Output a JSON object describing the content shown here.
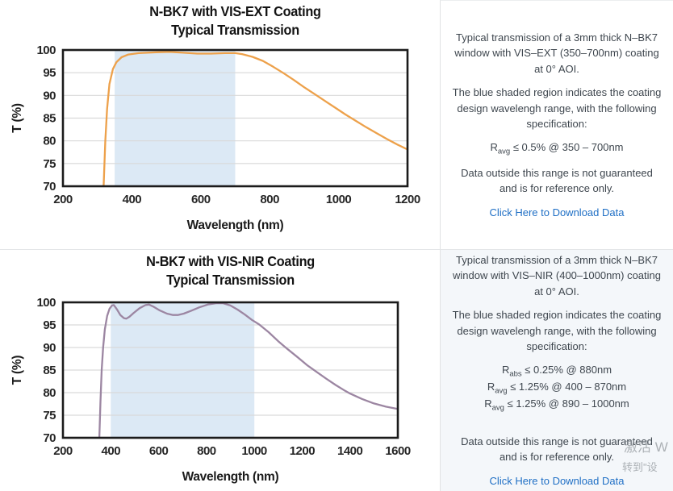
{
  "chart_data": [
    {
      "type": "line",
      "title": "N-BK7 with VIS-EXT Coating",
      "subtitle": "Typical Transmission",
      "xlabel": "Wavelength (nm)",
      "ylabel": "T (%)",
      "xlim": [
        200,
        1200
      ],
      "xticks": [
        200,
        400,
        600,
        800,
        1000,
        1200
      ],
      "ylim": [
        70,
        100
      ],
      "yticks": [
        70,
        75,
        80,
        85,
        90,
        95,
        100
      ],
      "grid": "horizontal",
      "legend": "none",
      "shaded_region": {
        "x0": 350,
        "x1": 700,
        "color": "#dce9f5",
        "meaning": "coating design wavelength range 350-700nm"
      },
      "line_color": "#eda14b",
      "series": [
        {
          "name": "Typical Transmission",
          "points": [
            [
              318,
              70
            ],
            [
              323,
              80
            ],
            [
              328,
              87
            ],
            [
              335,
              92.5
            ],
            [
              345,
              95.8
            ],
            [
              355,
              97.3
            ],
            [
              370,
              98.4
            ],
            [
              390,
              99
            ],
            [
              420,
              99.3
            ],
            [
              470,
              99.5
            ],
            [
              510,
              99.6
            ],
            [
              550,
              99.4
            ],
            [
              590,
              99.2
            ],
            [
              630,
              99.2
            ],
            [
              670,
              99.3
            ],
            [
              700,
              99.3
            ],
            [
              720,
              99.1
            ],
            [
              750,
              98.5
            ],
            [
              780,
              97.6
            ],
            [
              810,
              96.3
            ],
            [
              840,
              94.9
            ],
            [
              870,
              93.4
            ],
            [
              900,
              91.8
            ],
            [
              930,
              90.3
            ],
            [
              960,
              88.8
            ],
            [
              990,
              87.3
            ],
            [
              1020,
              85.8
            ],
            [
              1050,
              84.4
            ],
            [
              1080,
              83
            ],
            [
              1110,
              81.7
            ],
            [
              1140,
              80.4
            ],
            [
              1170,
              79.2
            ],
            [
              1200,
              78.1
            ]
          ]
        }
      ]
    },
    {
      "type": "line",
      "title": "N-BK7 with VIS-NIR Coating",
      "subtitle": "Typical Transmission",
      "xlabel": "Wavelength (nm)",
      "ylabel": "T (%)",
      "xlim": [
        200,
        1600
      ],
      "xticks": [
        200,
        400,
        600,
        800,
        1000,
        1200,
        1400,
        1600
      ],
      "ylim": [
        70,
        100
      ],
      "yticks": [
        70,
        75,
        80,
        85,
        90,
        95,
        100
      ],
      "grid": "horizontal",
      "legend": "none",
      "shaded_region": {
        "x0": 400,
        "x1": 1000,
        "color": "#dce9f5",
        "meaning": "coating design wavelength range 400-1000nm"
      },
      "line_color": "#9c86a2",
      "series": [
        {
          "name": "Typical Transmission",
          "points": [
            [
              352,
              70
            ],
            [
              357,
              78
            ],
            [
              362,
              85
            ],
            [
              368,
              90
            ],
            [
              375,
              94
            ],
            [
              385,
              97
            ],
            [
              395,
              98.6
            ],
            [
              405,
              99.3
            ],
            [
              413,
              99.4
            ],
            [
              425,
              98.5
            ],
            [
              440,
              97.2
            ],
            [
              455,
              96.5
            ],
            [
              465,
              96.4
            ],
            [
              478,
              96.8
            ],
            [
              495,
              97.6
            ],
            [
              520,
              98.7
            ],
            [
              545,
              99.4
            ],
            [
              560,
              99.5
            ],
            [
              580,
              99
            ],
            [
              605,
              98.2
            ],
            [
              635,
              97.5
            ],
            [
              660,
              97.2
            ],
            [
              680,
              97.2
            ],
            [
              705,
              97.5
            ],
            [
              735,
              98.1
            ],
            [
              770,
              98.9
            ],
            [
              805,
              99.5
            ],
            [
              840,
              99.8
            ],
            [
              870,
              99.8
            ],
            [
              900,
              99.3
            ],
            [
              930,
              98.4
            ],
            [
              960,
              97.3
            ],
            [
              990,
              96.1
            ],
            [
              1020,
              95.1
            ],
            [
              1060,
              93.4
            ],
            [
              1100,
              91.4
            ],
            [
              1140,
              89.6
            ],
            [
              1180,
              87.9
            ],
            [
              1220,
              86.1
            ],
            [
              1260,
              84.6
            ],
            [
              1300,
              83.1
            ],
            [
              1340,
              81.7
            ],
            [
              1380,
              80.4
            ],
            [
              1400,
              79.8
            ],
            [
              1450,
              78.6
            ],
            [
              1500,
              77.6
            ],
            [
              1550,
              76.9
            ],
            [
              1600,
              76.4
            ]
          ]
        }
      ]
    }
  ],
  "panels": [
    {
      "p1": "Typical transmission of a 3mm thick N–BK7 window with VIS–EXT (350–700nm) coating at 0° AOI.",
      "p2": "The blue shaded region indicates the coating design wavelengh range, with the following specification:",
      "specs": [
        {
          "base": "R",
          "sub": "avg",
          "text": "≤ 0.5% @ 350 – 700nm"
        }
      ],
      "note": "Data outside this range is not guaranteed and is for reference only.",
      "link": "Click Here to Download Data"
    },
    {
      "p1": "Typical transmission of a 3mm thick N–BK7 window with VIS–NIR (400–1000nm) coating at 0° AOI.",
      "p2": "The blue shaded region indicates the coating design wavelengh range, with the following specification:",
      "specs": [
        {
          "base": "R",
          "sub": "abs",
          "text": "≤ 0.25% @ 880nm"
        },
        {
          "base": "R",
          "sub": "avg",
          "text": "≤ 1.25% @ 400 – 870nm"
        },
        {
          "base": "R",
          "sub": "avg",
          "text": "≤ 1.25% @ 890 – 1000nm"
        }
      ],
      "note": "Data outside this range is not guaranteed and is for reference only.",
      "link": "Click Here to Download Data"
    }
  ],
  "watermark": {
    "line1": "激活 W",
    "line2": "转到\"设"
  }
}
